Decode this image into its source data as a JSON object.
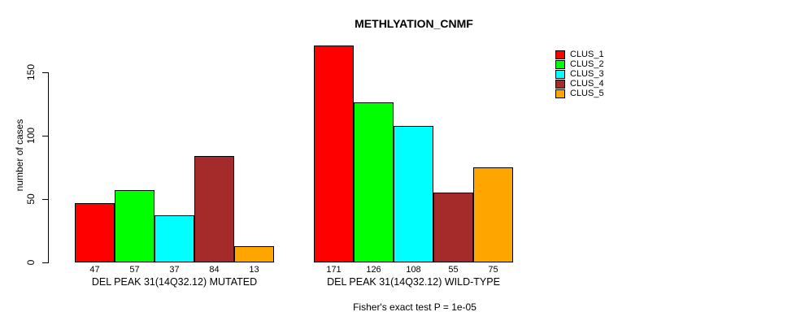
{
  "chart_data": {
    "type": "bar",
    "title": "METHLYATION_CNMF",
    "ylabel": "number of cases",
    "xlabel": "",
    "ylim": [
      0,
      150
    ],
    "yticks": [
      0,
      50,
      100,
      150
    ],
    "grid": false,
    "legend_position": "right",
    "show_values": true,
    "bar_border_color": "#000000",
    "series": [
      {
        "name": "CLUS_1",
        "color": "#FF0000"
      },
      {
        "name": "CLUS_2",
        "color": "#00FF00"
      },
      {
        "name": "CLUS_3",
        "color": "#00FFFF"
      },
      {
        "name": "CLUS_4",
        "color": "#A52A2A"
      },
      {
        "name": "CLUS_5",
        "color": "#FFA500"
      }
    ],
    "groups": [
      {
        "label": "DEL PEAK 31(14Q32.12) MUTATED",
        "values": [
          47,
          57,
          37,
          84,
          13
        ]
      },
      {
        "label": "DEL PEAK 31(14Q32.12) WILD-TYPE",
        "values": [
          171,
          126,
          108,
          55,
          75
        ]
      }
    ],
    "annotation": "Fisher's exact test P = 1e-05"
  }
}
